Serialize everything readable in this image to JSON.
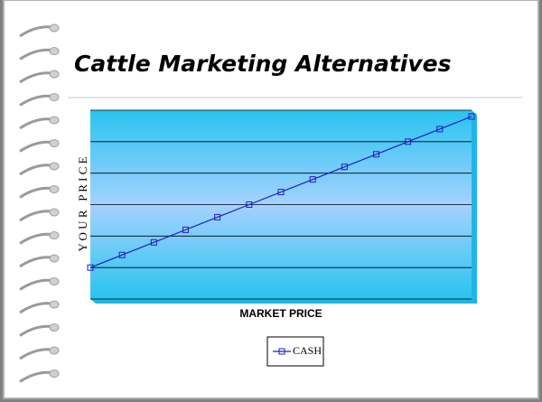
{
  "chart_data": {
    "type": "line",
    "title": "Cattle Marketing Alternatives",
    "x_label": "MARKET PRICE",
    "y_label": "Y O U R   P R I C E",
    "categories": [
      null,
      null,
      null,
      null,
      null,
      null,
      null,
      null,
      null,
      null,
      null,
      null,
      null
    ],
    "series": [
      {
        "name": "CASH",
        "color": "#1f1fbf",
        "values": [
          1.0,
          1.4,
          1.8,
          2.2,
          2.6,
          3.0,
          3.4,
          3.8,
          4.2,
          4.6,
          5.0,
          5.4,
          5.8
        ]
      }
    ],
    "ylim": [
      0,
      6
    ],
    "yticks": [
      0,
      1,
      2,
      3,
      4,
      5,
      6
    ],
    "grid": true
  }
}
